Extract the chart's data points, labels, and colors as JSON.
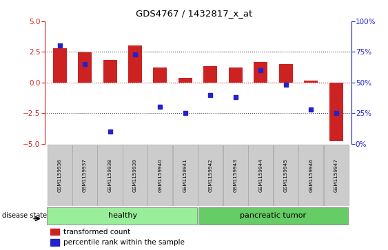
{
  "title": "GDS4767 / 1432817_x_at",
  "samples": [
    "GSM1159936",
    "GSM1159937",
    "GSM1159938",
    "GSM1159939",
    "GSM1159940",
    "GSM1159941",
    "GSM1159942",
    "GSM1159943",
    "GSM1159944",
    "GSM1159945",
    "GSM1159946",
    "GSM1159947"
  ],
  "transformed_count": [
    2.8,
    2.45,
    1.85,
    3.0,
    1.2,
    0.4,
    1.35,
    1.25,
    1.7,
    1.5,
    0.15,
    -4.8
  ],
  "percentile_rank_pct": [
    80,
    65,
    10,
    73,
    30,
    25,
    40,
    38,
    60,
    48,
    28,
    25
  ],
  "disease_state": [
    "healthy",
    "healthy",
    "healthy",
    "healthy",
    "healthy",
    "healthy",
    "pancreatic tumor",
    "pancreatic tumor",
    "pancreatic tumor",
    "pancreatic tumor",
    "pancreatic tumor",
    "pancreatic tumor"
  ],
  "ylim": [
    -5,
    5
  ],
  "y2lim": [
    0,
    100
  ],
  "bar_color": "#cc2222",
  "dot_color": "#2222cc",
  "hline_color": "#cc2222",
  "healthy_color": "#99ee99",
  "tumor_color": "#66cc66",
  "bg_color": "#ffffff",
  "label_box_color": "#cccccc",
  "label_box_edge": "#aaaaaa",
  "yticks": [
    -5,
    -2.5,
    0,
    2.5,
    5
  ],
  "y2ticks": [
    0,
    25,
    50,
    75,
    100
  ],
  "dotted_hlines": [
    -2.5,
    0,
    2.5
  ],
  "legend_entries": [
    "transformed count",
    "percentile rank within the sample"
  ],
  "healthy_count": 6,
  "tumor_count": 6
}
